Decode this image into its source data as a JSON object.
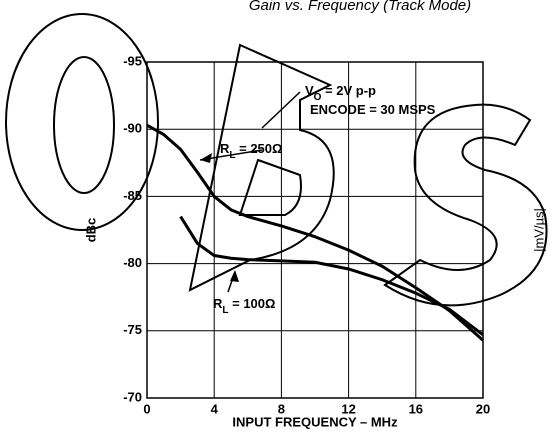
{
  "chart_data": {
    "type": "line",
    "title": "Gain vs. Frequency (Track Mode)",
    "xlabel": "INPUT FREQUENCY – MHz",
    "ylabel": "dBc",
    "side_label": "|mV/µs|",
    "x": [
      0,
      1,
      2,
      3,
      4,
      5,
      6,
      8,
      10,
      12,
      14,
      16,
      18,
      20
    ],
    "series": [
      {
        "color": "#000000",
        "values": [
          -90.3,
          -89.6,
          -88.5,
          -86.8,
          -85,
          -84,
          -83.5,
          -82.8,
          -82,
          -81,
          -79.8,
          -78.2,
          -76.5,
          -74.3
        ]
      },
      {
        "color": "#000000",
        "values": [
          null,
          null,
          -83.5,
          -81.5,
          -80.6,
          -80.4,
          -80.3,
          -80.2,
          -80.1,
          -79.6,
          -78.8,
          -77.8,
          -76.6,
          -74.7
        ]
      }
    ],
    "annotations": [
      {
        "text": "V",
        "sub": "O",
        "rest": " = 2V p-p"
      },
      {
        "text": "ENCODE = 30 MSPS"
      },
      {
        "text": "R",
        "sub": "L",
        "rest": " = 250Ω"
      },
      {
        "text": "R",
        "sub": "L",
        "rest": " = 100Ω"
      }
    ],
    "xlim": [
      0,
      20
    ],
    "xticks": [
      0,
      4,
      8,
      12,
      16,
      20
    ],
    "ylim": [
      -70,
      -95
    ],
    "yticks": [
      -95,
      -90,
      -85,
      -80,
      -75,
      -70
    ],
    "grid": true
  }
}
